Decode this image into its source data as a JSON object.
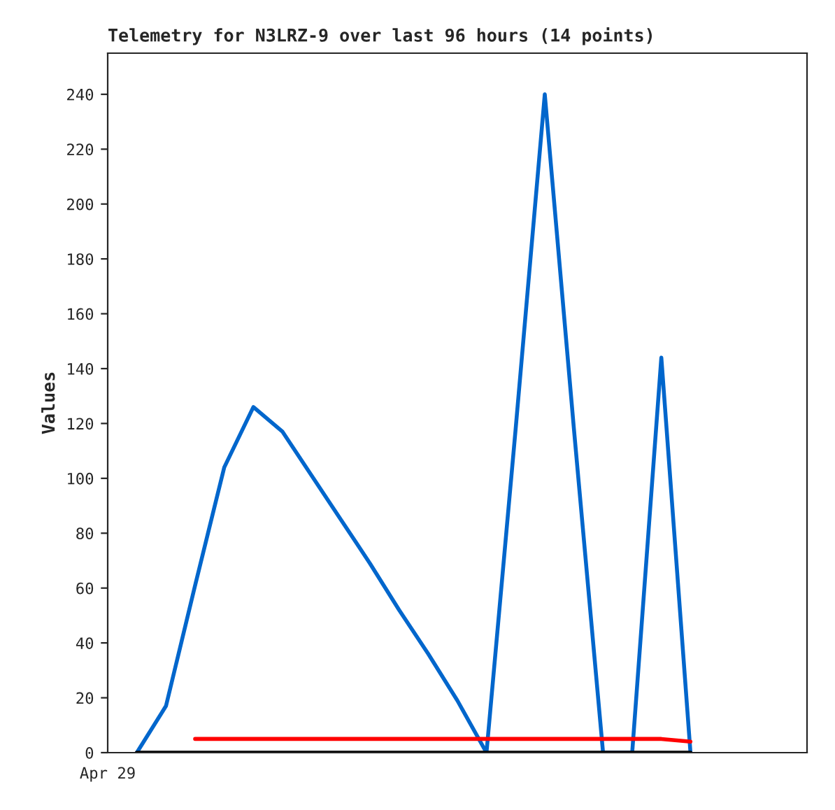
{
  "chart_data": {
    "type": "line",
    "title": "Telemetry for N3LRZ-9 over last 96 hours (14 points)",
    "ylabel": "Values",
    "annotations": [
      "Apr 29"
    ],
    "categories": [
      null,
      null,
      null,
      null,
      null,
      null,
      null,
      null,
      null,
      null,
      null,
      null,
      null,
      null,
      null,
      null,
      null,
      null,
      null,
      null
    ],
    "series": [
      {
        "color": "#0066cc",
        "values": [
          0,
          17,
          61,
          104,
          126,
          117,
          101,
          85,
          69,
          52,
          36,
          19,
          0,
          118,
          240,
          118,
          0,
          0,
          144,
          0
        ]
      },
      {
        "color": "#ff0000",
        "values": [
          null,
          null,
          5,
          null,
          null,
          null,
          null,
          null,
          null,
          null,
          null,
          null,
          null,
          null,
          null,
          null,
          null,
          null,
          5,
          4
        ]
      },
      {
        "color": "#000000",
        "values": [
          0,
          null,
          null,
          null,
          null,
          null,
          null,
          null,
          null,
          null,
          null,
          null,
          null,
          null,
          null,
          null,
          null,
          null,
          null,
          0
        ]
      }
    ],
    "ylim": [
      0,
      255
    ],
    "yticks": [
      0,
      20,
      40,
      60,
      80,
      100,
      120,
      140,
      160,
      180,
      200,
      220,
      240
    ],
    "grid": false,
    "legend": false
  }
}
